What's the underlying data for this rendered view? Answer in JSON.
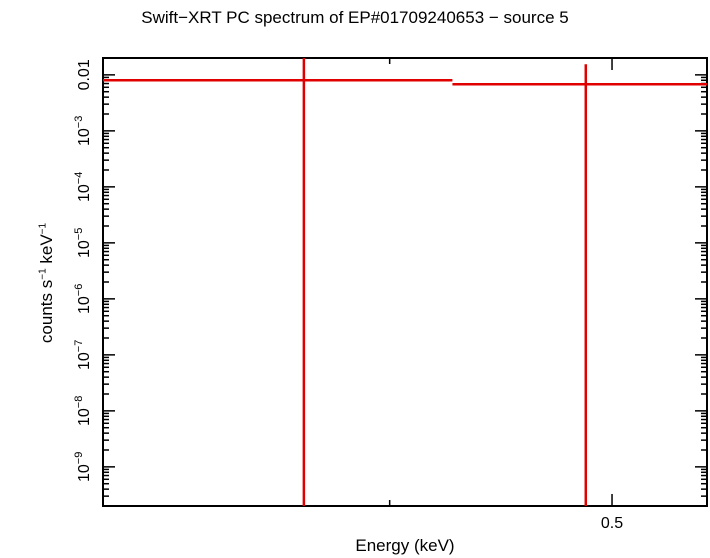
{
  "chart_data": {
    "type": "line",
    "title": "Swift−XRT PC spectrum of EP#01709240653 − source 5",
    "xlabel": "Energy (keV)",
    "ylabel": {
      "base": "counts s",
      "exp1": "−1",
      "mid": " keV",
      "exp2": "−1"
    },
    "x_scale": "log",
    "y_scale": "log",
    "xlim": [
      0.3,
      0.55
    ],
    "ylim": [
      2e-10,
      0.02
    ],
    "x_ticks": [
      {
        "value": 0.5,
        "label": "0.5"
      }
    ],
    "y_ticks": [
      {
        "value": 0.01,
        "label": "0.01",
        "mantissa": "",
        "exp": ""
      },
      {
        "value": 0.001,
        "label": "10",
        "mantissa": "10",
        "exp": "−3"
      },
      {
        "value": 0.0001,
        "label": "10",
        "mantissa": "10",
        "exp": "−4"
      },
      {
        "value": 1e-05,
        "label": "10",
        "mantissa": "10",
        "exp": "−5"
      },
      {
        "value": 1e-06,
        "label": "10",
        "mantissa": "10",
        "exp": "−6"
      },
      {
        "value": 1e-07,
        "label": "10",
        "mantissa": "10",
        "exp": "−7"
      },
      {
        "value": 1e-08,
        "label": "10",
        "mantissa": "10",
        "exp": "−8"
      },
      {
        "value": 1e-09,
        "label": "10",
        "mantissa": "10",
        "exp": "−9"
      }
    ],
    "series": [
      {
        "color": "#e00000",
        "bins": [
          {
            "x_lo": 0.3,
            "x_hi": 0.426,
            "x_center": 0.367,
            "y": 0.008,
            "y_lo": 2e-10,
            "y_hi": 0.02
          },
          {
            "x_lo": 0.426,
            "x_hi": 0.55,
            "x_center": 0.487,
            "y": 0.0068,
            "y_lo": 2e-10,
            "y_hi": 0.0155
          }
        ]
      }
    ]
  }
}
